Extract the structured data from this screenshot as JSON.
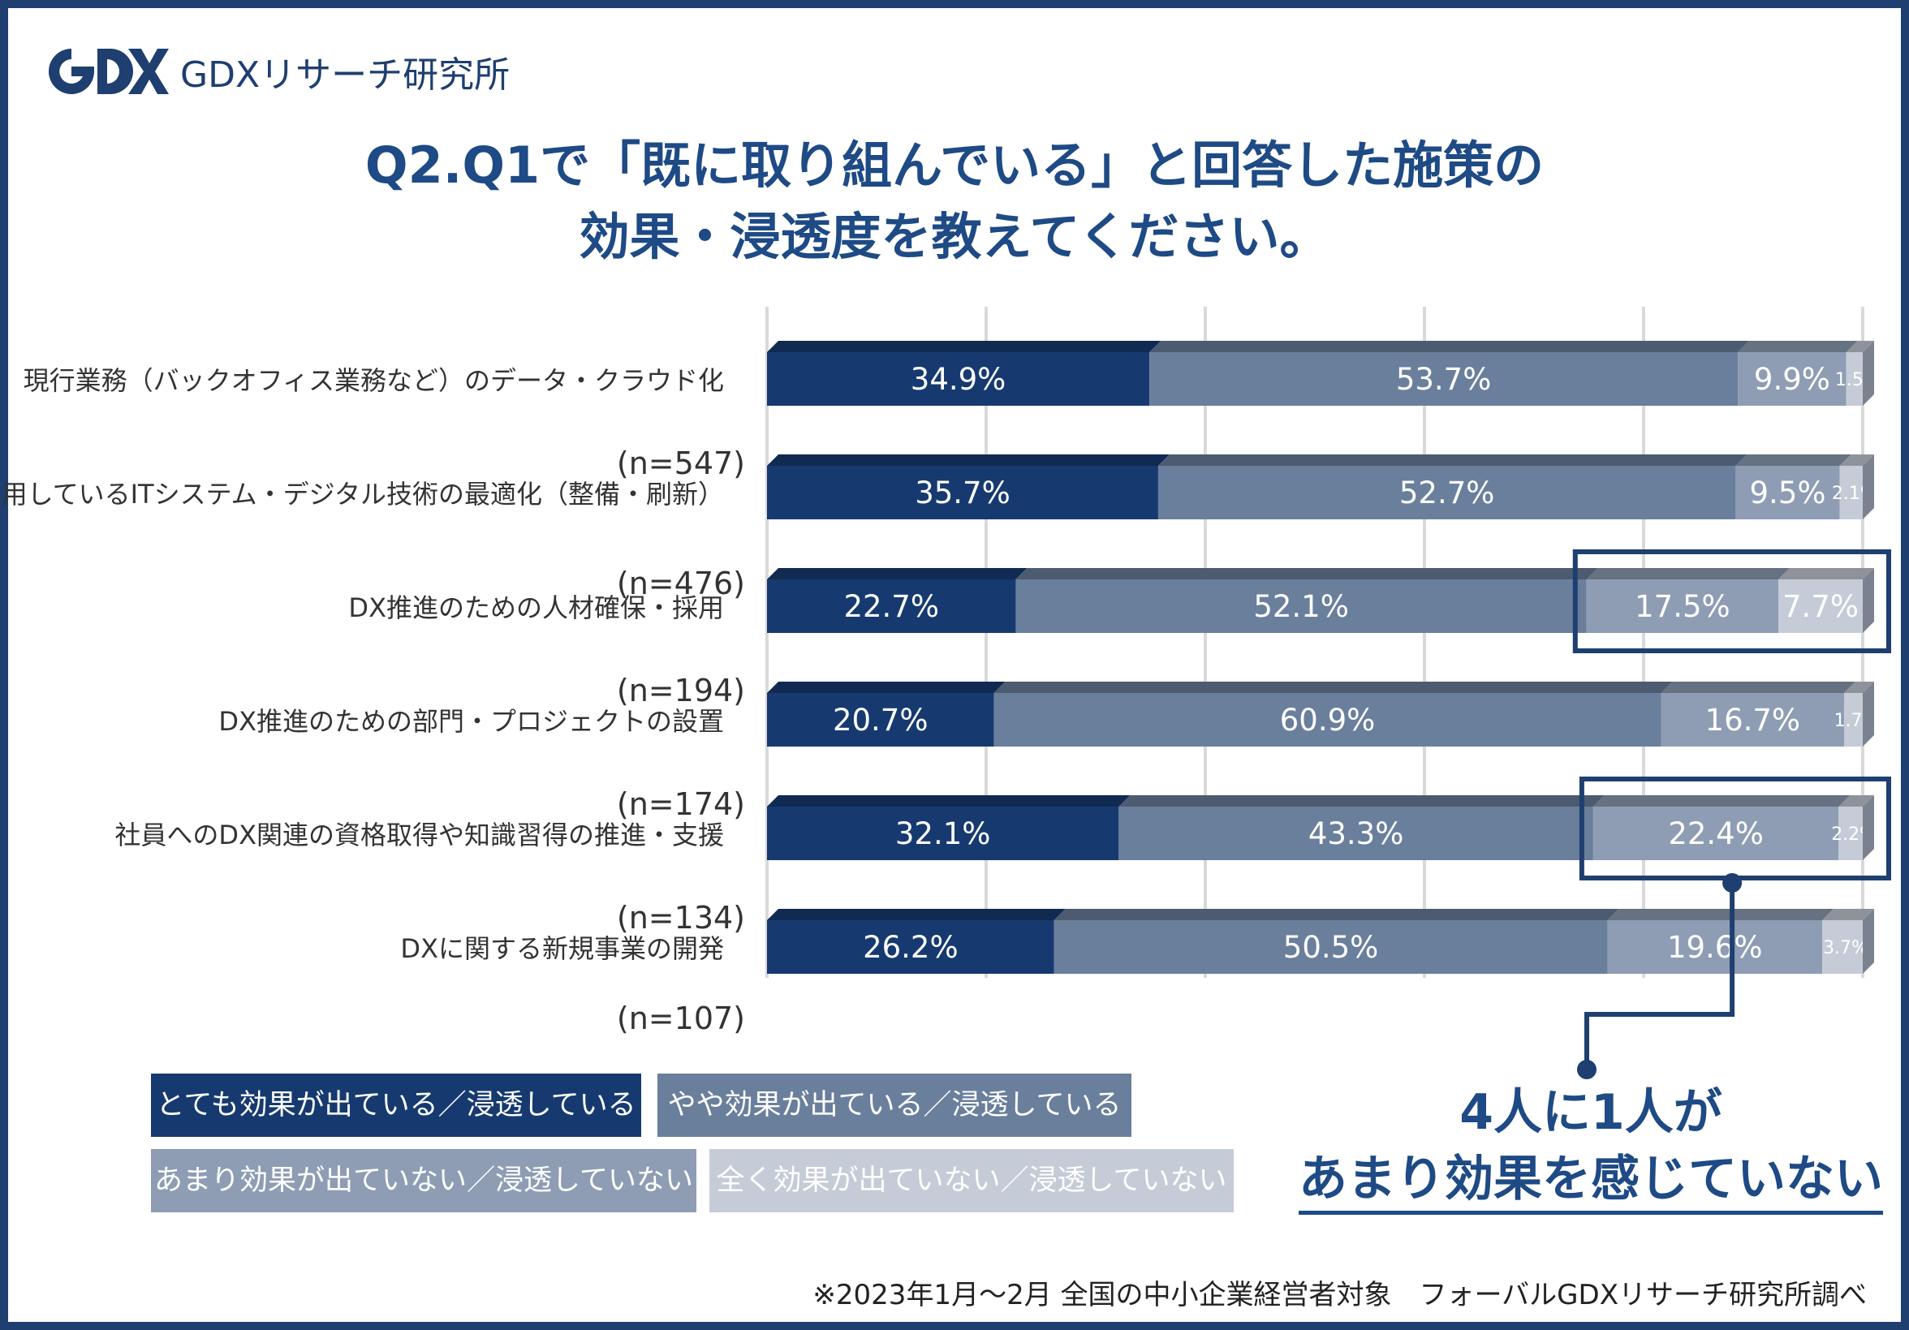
{
  "brand": {
    "logo_text": "GDX",
    "name": "GDXリサーチ研究所"
  },
  "title": {
    "line1": "Q2.Q1で「既に取り組んでいる」と回答した施策の",
    "line2": "効果・浸透度を教えてください。"
  },
  "chart_data": {
    "type": "bar",
    "orientation": "horizontal",
    "stacked": true,
    "unit": "%",
    "xlim": [
      0,
      100
    ],
    "grid": true,
    "legend_position": "bottom-left",
    "categories": [
      {
        "label": "現行業務（バックオフィス業務など）のデータ・クラウド化",
        "n": "(n=547)"
      },
      {
        "label": "利用しているITシステム・デジタル技術の最適化（整備・刷新）",
        "n": "(n=476)"
      },
      {
        "label": "DX推進のための人材確保・採用",
        "n": "(n=194)"
      },
      {
        "label": "DX推進のための部門・プロジェクトの設置",
        "n": "(n=174)"
      },
      {
        "label": "社員へのDX関連の資格取得や知識習得の推進・支援",
        "n": "(n=134)"
      },
      {
        "label": "DXに関する新規事業の開発",
        "n": "(n=107)"
      }
    ],
    "series": [
      {
        "name": "とても効果が出ている／浸透している",
        "color": "#163a70",
        "values": [
          34.9,
          35.7,
          22.7,
          20.7,
          32.1,
          26.2
        ]
      },
      {
        "name": "やや効果が出ている／浸透している",
        "color": "#6a7f9c",
        "values": [
          53.7,
          52.7,
          52.1,
          60.9,
          43.3,
          50.5
        ]
      },
      {
        "name": "あまり効果が出ていない／浸透していない",
        "color": "#8e9db4",
        "values": [
          9.9,
          9.5,
          17.5,
          16.7,
          22.4,
          19.6
        ]
      },
      {
        "name": "全く効果が出ていない／浸透していない",
        "color": "#c5ccd7",
        "values": [
          1.5,
          2.1,
          7.7,
          1.7,
          2.2,
          3.7
        ]
      }
    ],
    "highlighted_categories": [
      2,
      4
    ]
  },
  "callout": {
    "line1": "4人に1人が",
    "line2": "あまり効果を感じていない"
  },
  "source": "※2023年1月～2月 全国の中小企業経営者対象　フォーバルGDXリサーチ研究所調べ"
}
